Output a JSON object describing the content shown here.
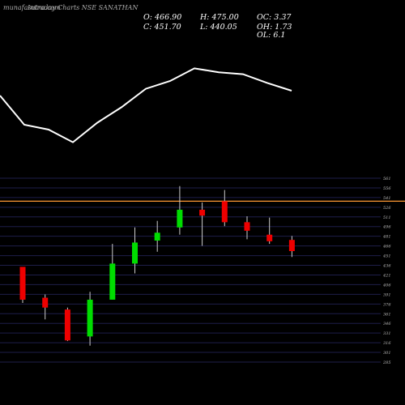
{
  "header": {
    "site_label": "munafasutra.com",
    "title": "Intraday Charts NSE SANATHAN"
  },
  "ohlc": {
    "open": "O: 466.90",
    "high": "H: 475.00",
    "oc": "OC: 3.37",
    "close": "C: 451.70",
    "low": "L: 440.05",
    "oh": "OH: 1.73",
    "ol": "OL: 6.1"
  },
  "colors": {
    "background": "#000000",
    "up": "#00dd00",
    "down": "#ee0000",
    "reference_line": "#ff9933",
    "grid": "#1e1e4a",
    "indicator_line": "#ffffff"
  },
  "chart_data": {
    "type": "candlestick",
    "ylim": [
      285,
      565
    ],
    "y_ticks": [
      "561",
      "556",
      "541",
      "526",
      "511",
      "496",
      "481",
      "466",
      "451",
      "436",
      "421",
      "406",
      "391",
      "376",
      "361",
      "346",
      "331",
      "316",
      "301",
      "285"
    ],
    "reference_level": 530,
    "candles": [
      {
        "open": 430,
        "high": 430,
        "low": 375,
        "close": 380
      },
      {
        "open": 383,
        "high": 388,
        "low": 350,
        "close": 368
      },
      {
        "open": 365,
        "high": 368,
        "low": 317,
        "close": 318
      },
      {
        "open": 324,
        "high": 392,
        "low": 310,
        "close": 380
      },
      {
        "open": 380,
        "high": 465,
        "low": 380,
        "close": 435
      },
      {
        "open": 435,
        "high": 490,
        "low": 420,
        "close": 467
      },
      {
        "open": 470,
        "high": 500,
        "low": 453,
        "close": 482
      },
      {
        "open": 490,
        "high": 553,
        "low": 479,
        "close": 517
      },
      {
        "open": 517,
        "high": 528,
        "low": 462,
        "close": 508
      },
      {
        "open": 530,
        "high": 547,
        "low": 492,
        "close": 498
      },
      {
        "open": 498,
        "high": 507,
        "low": 472,
        "close": 485
      },
      {
        "open": 479,
        "high": 505,
        "low": 465,
        "close": 469
      },
      {
        "open": 471,
        "high": 477,
        "low": 445,
        "close": 454
      }
    ],
    "indicator_line": [
      60,
      30,
      25,
      12,
      32,
      48,
      67,
      75,
      88,
      84,
      82,
      73,
      65
    ]
  }
}
